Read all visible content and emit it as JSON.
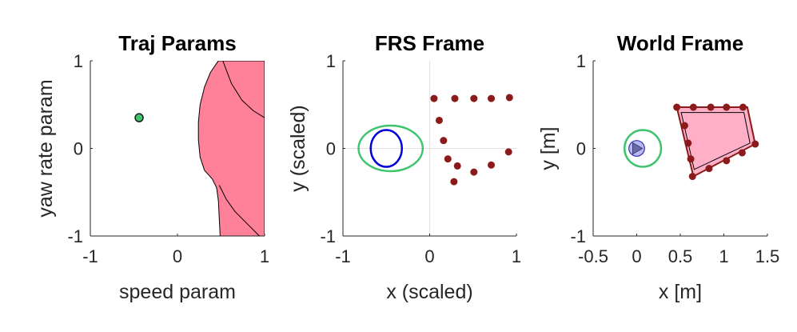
{
  "chart_data": [
    {
      "type": "scatter",
      "title": "Traj Params",
      "xlabel": "speed param",
      "ylabel": "yaw rate param",
      "xlim": [
        -1,
        1
      ],
      "ylim": [
        -1,
        1
      ],
      "xticks": [
        -1,
        0,
        1
      ],
      "yticks": [
        -1,
        0,
        1
      ],
      "xtick_labels": [
        "-1",
        "0",
        "1"
      ],
      "ytick_labels": [
        "-1",
        "0",
        "1"
      ],
      "grid": false,
      "region_color": "#ff8099",
      "marker_color": "#3ec46d",
      "points": [
        {
          "x": -0.44,
          "y": 0.35
        }
      ],
      "region_boundary": [
        [
          0.47,
          1.0
        ],
        [
          0.38,
          0.87
        ],
        [
          0.31,
          0.7
        ],
        [
          0.26,
          0.5
        ],
        [
          0.24,
          0.3
        ],
        [
          0.24,
          0.1
        ],
        [
          0.26,
          -0.1
        ],
        [
          0.31,
          -0.25
        ],
        [
          0.4,
          -0.35
        ],
        [
          0.45,
          -0.45
        ],
        [
          0.47,
          -0.6
        ],
        [
          0.48,
          -0.8
        ],
        [
          0.49,
          -1.0
        ],
        [
          1.0,
          -1.0
        ],
        [
          1.0,
          1.0
        ]
      ],
      "region_curves": [
        [
          [
            0.52,
            1.0
          ],
          [
            0.62,
            0.74
          ],
          [
            0.74,
            0.55
          ],
          [
            0.87,
            0.43
          ],
          [
            1.0,
            0.35
          ]
        ],
        [
          [
            0.48,
            -0.42
          ],
          [
            0.56,
            -0.58
          ],
          [
            0.66,
            -0.72
          ],
          [
            0.8,
            -0.86
          ],
          [
            0.94,
            -1.0
          ]
        ]
      ]
    },
    {
      "type": "scatter",
      "title": "FRS Frame",
      "xlabel": "x (scaled)",
      "ylabel": "y (scaled)",
      "xlim": [
        -1,
        1
      ],
      "ylim": [
        -1,
        1
      ],
      "xticks": [
        -1,
        0,
        1
      ],
      "yticks": [
        -1,
        0,
        1
      ],
      "xtick_labels": [
        "-1",
        "0",
        "1"
      ],
      "ytick_labels": [
        "-1",
        "0",
        "1"
      ],
      "grid": false,
      "crosshair_color": "#e0e0e0",
      "ellipse": {
        "cx": -0.45,
        "cy": 0.0,
        "rx": 0.37,
        "ry": 0.26,
        "color": "#3ec46d"
      },
      "circle": {
        "cx": -0.5,
        "cy": 0.0,
        "rx": 0.18,
        "ry": 0.21,
        "color": "#0000dd"
      },
      "point_color": "#8b1a1a",
      "points": [
        {
          "x": 0.05,
          "y": 0.57
        },
        {
          "x": 0.29,
          "y": 0.57
        },
        {
          "x": 0.51,
          "y": 0.57
        },
        {
          "x": 0.71,
          "y": 0.57
        },
        {
          "x": 0.92,
          "y": 0.58
        },
        {
          "x": 0.11,
          "y": 0.32
        },
        {
          "x": 0.16,
          "y": 0.09
        },
        {
          "x": 0.21,
          "y": -0.12
        },
        {
          "x": 0.32,
          "y": -0.2
        },
        {
          "x": 0.28,
          "y": -0.38
        },
        {
          "x": 0.51,
          "y": -0.27
        },
        {
          "x": 0.71,
          "y": -0.19
        },
        {
          "x": 0.91,
          "y": -0.04
        }
      ]
    },
    {
      "type": "scatter",
      "title": "World Frame",
      "xlabel": "x [m]",
      "ylabel": "y [m]",
      "xlim": [
        -0.5,
        1.5
      ],
      "ylim": [
        -1,
        1
      ],
      "xticks": [
        -0.5,
        0,
        0.5,
        1,
        1.5
      ],
      "yticks": [
        -1,
        0,
        1
      ],
      "xtick_labels": [
        "-0.5",
        "0",
        "0.5",
        "1",
        "1.5"
      ],
      "ytick_labels": [
        "-1",
        "0",
        "1"
      ],
      "grid": false,
      "ellipse": {
        "cx": 0.07,
        "cy": 0.0,
        "rx": 0.21,
        "ry": 0.21,
        "color": "#3ec46d"
      },
      "robot": {
        "cx": 0.0,
        "cy": 0.0,
        "r": 0.09,
        "fill": "#b8b8f0",
        "edge": "#3333aa"
      },
      "obstacle_outer": [
        [
          0.46,
          0.47
        ],
        [
          1.27,
          0.47
        ],
        [
          1.36,
          0.05
        ],
        [
          0.65,
          -0.32
        ]
      ],
      "obstacle_inner": [
        [
          0.51,
          0.41
        ],
        [
          1.23,
          0.41
        ],
        [
          1.3,
          0.06
        ],
        [
          0.66,
          -0.24
        ]
      ],
      "obstacle_fill": "#ffb0c8",
      "obstacle_edge": "#8b1a1a",
      "point_color": "#8b1a1a",
      "points": [
        {
          "x": 0.46,
          "y": 0.47
        },
        {
          "x": 0.65,
          "y": 0.47
        },
        {
          "x": 0.85,
          "y": 0.47
        },
        {
          "x": 1.03,
          "y": 0.47
        },
        {
          "x": 1.22,
          "y": 0.47
        },
        {
          "x": 0.55,
          "y": 0.26
        },
        {
          "x": 0.59,
          "y": 0.06
        },
        {
          "x": 0.62,
          "y": -0.12
        },
        {
          "x": 0.64,
          "y": -0.32
        },
        {
          "x": 0.83,
          "y": -0.23
        },
        {
          "x": 1.03,
          "y": -0.14
        },
        {
          "x": 1.21,
          "y": -0.05
        },
        {
          "x": 1.36,
          "y": 0.05
        }
      ]
    }
  ]
}
